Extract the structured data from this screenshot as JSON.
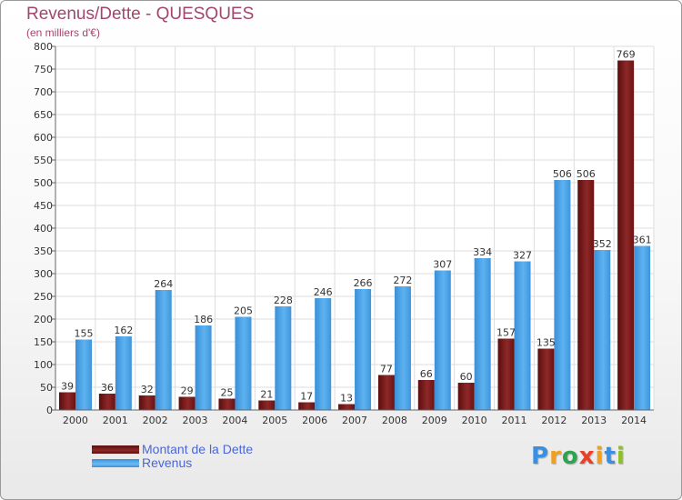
{
  "header": {
    "title": "Revenus/Dette - QUESQUES",
    "subtitle": "(en milliers d'€)"
  },
  "chart_data": {
    "type": "bar",
    "categories": [
      "2000",
      "2001",
      "2002",
      "2003",
      "2004",
      "2005",
      "2006",
      "2007",
      "2008",
      "2009",
      "2010",
      "2011",
      "2012",
      "2013",
      "2014"
    ],
    "series": [
      {
        "name": "Montant de la Dette",
        "color": "#7a1616",
        "values": [
          39,
          36,
          32,
          29,
          25,
          21,
          17,
          13,
          77,
          66,
          60,
          157,
          135,
          506,
          769
        ]
      },
      {
        "name": "Revenus",
        "color": "#4aa3e8",
        "values": [
          155,
          162,
          264,
          186,
          205,
          228,
          246,
          266,
          272,
          307,
          334,
          327,
          506,
          352,
          361
        ]
      }
    ],
    "ylim": [
      0,
      800
    ],
    "yticks": [
      0,
      50,
      100,
      150,
      200,
      250,
      300,
      350,
      400,
      450,
      500,
      550,
      600,
      650,
      700,
      750,
      800
    ],
    "grid": true,
    "legend_position": "bottom-left"
  },
  "logo": {
    "text": "Proxiti",
    "letter_colors": [
      "#3a8fe0",
      "#f0a020",
      "#2ea44f",
      "#e8402a",
      "#f0a020",
      "#3a8fe0",
      "#8dbf2a"
    ]
  }
}
